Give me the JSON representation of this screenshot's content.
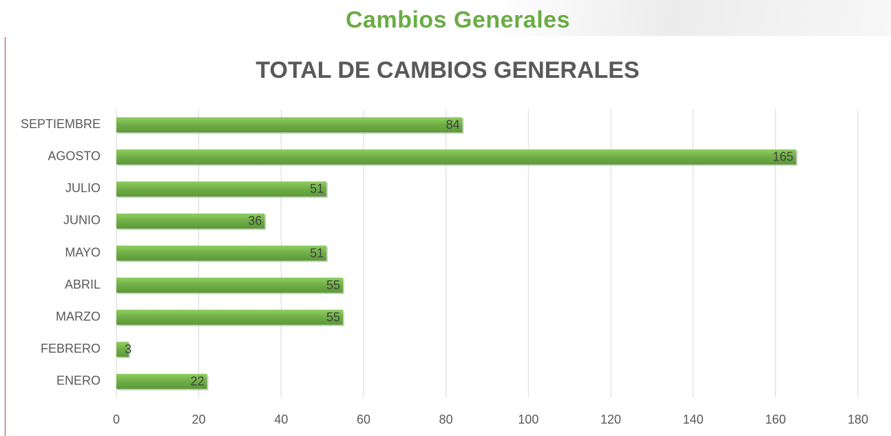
{
  "header": {
    "title": "Cambios Generales"
  },
  "chart_data": {
    "type": "bar",
    "orientation": "horizontal",
    "title": "TOTAL DE CAMBIOS GENERALES",
    "categories": [
      "ENERO",
      "FEBRERO",
      "MARZO",
      "ABRIL",
      "MAYO",
      "JUNIO",
      "JULIO",
      "AGOSTO",
      "SEPTIEMBRE"
    ],
    "values": [
      22,
      3,
      55,
      55,
      51,
      36,
      51,
      165,
      84
    ],
    "color": "#70ad47",
    "xlim": [
      0,
      180
    ],
    "xticks": [
      0,
      20,
      40,
      60,
      80,
      100,
      120,
      140,
      160,
      180
    ],
    "grid": true
  }
}
